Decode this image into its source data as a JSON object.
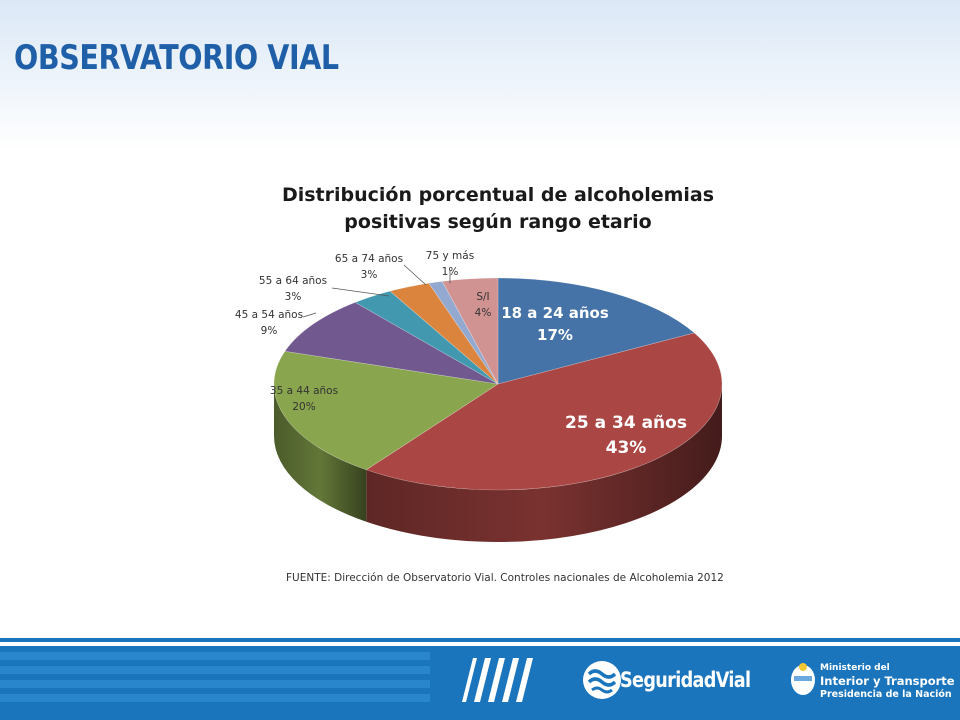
{
  "header": {
    "brand_title": "OBSERVATORIO VIAL"
  },
  "chart_data": {
    "type": "pie",
    "title_line1": "Distribución porcentual de alcoholemias",
    "title_line2": "positivas según rango etario",
    "slices": [
      {
        "label": "18  a 24 años",
        "value": 17,
        "value_label": "17%",
        "color": "#4572a7"
      },
      {
        "label": "25 a 34 años",
        "value": 43,
        "value_label": "43%",
        "color": "#aa4643"
      },
      {
        "label": "35 a 44 años",
        "value": 20,
        "value_label": "20%",
        "color": "#89a54e"
      },
      {
        "label": "45 a 54 años",
        "value": 9,
        "value_label": "9%",
        "color": "#71588f"
      },
      {
        "label": "55 a 64 años",
        "value": 3,
        "value_label": "3%",
        "color": "#4198af"
      },
      {
        "label": "65 a 74 años",
        "value": 3,
        "value_label": "3%",
        "color": "#db843d"
      },
      {
        "label": "75 y más",
        "value": 1,
        "value_label": "1%",
        "color": "#93a9cf"
      },
      {
        "label": "S/I",
        "value": 4,
        "value_label": "4%",
        "color": "#d19392"
      }
    ],
    "source": "FUENTE:  Dirección de Observatorio Vial.  Controles nacionales de Alcoholemia 2012"
  },
  "footer": {
    "brand_prefix": "Seguridad",
    "brand_suffix": "Vial",
    "ministry_line1": "Ministerio del",
    "ministry_line2": "Interior y Transporte",
    "ministry_line3": "Presidencia de la Nación",
    "colors": {
      "band": "#1b75bc",
      "stripe": "#2a86cc"
    }
  }
}
